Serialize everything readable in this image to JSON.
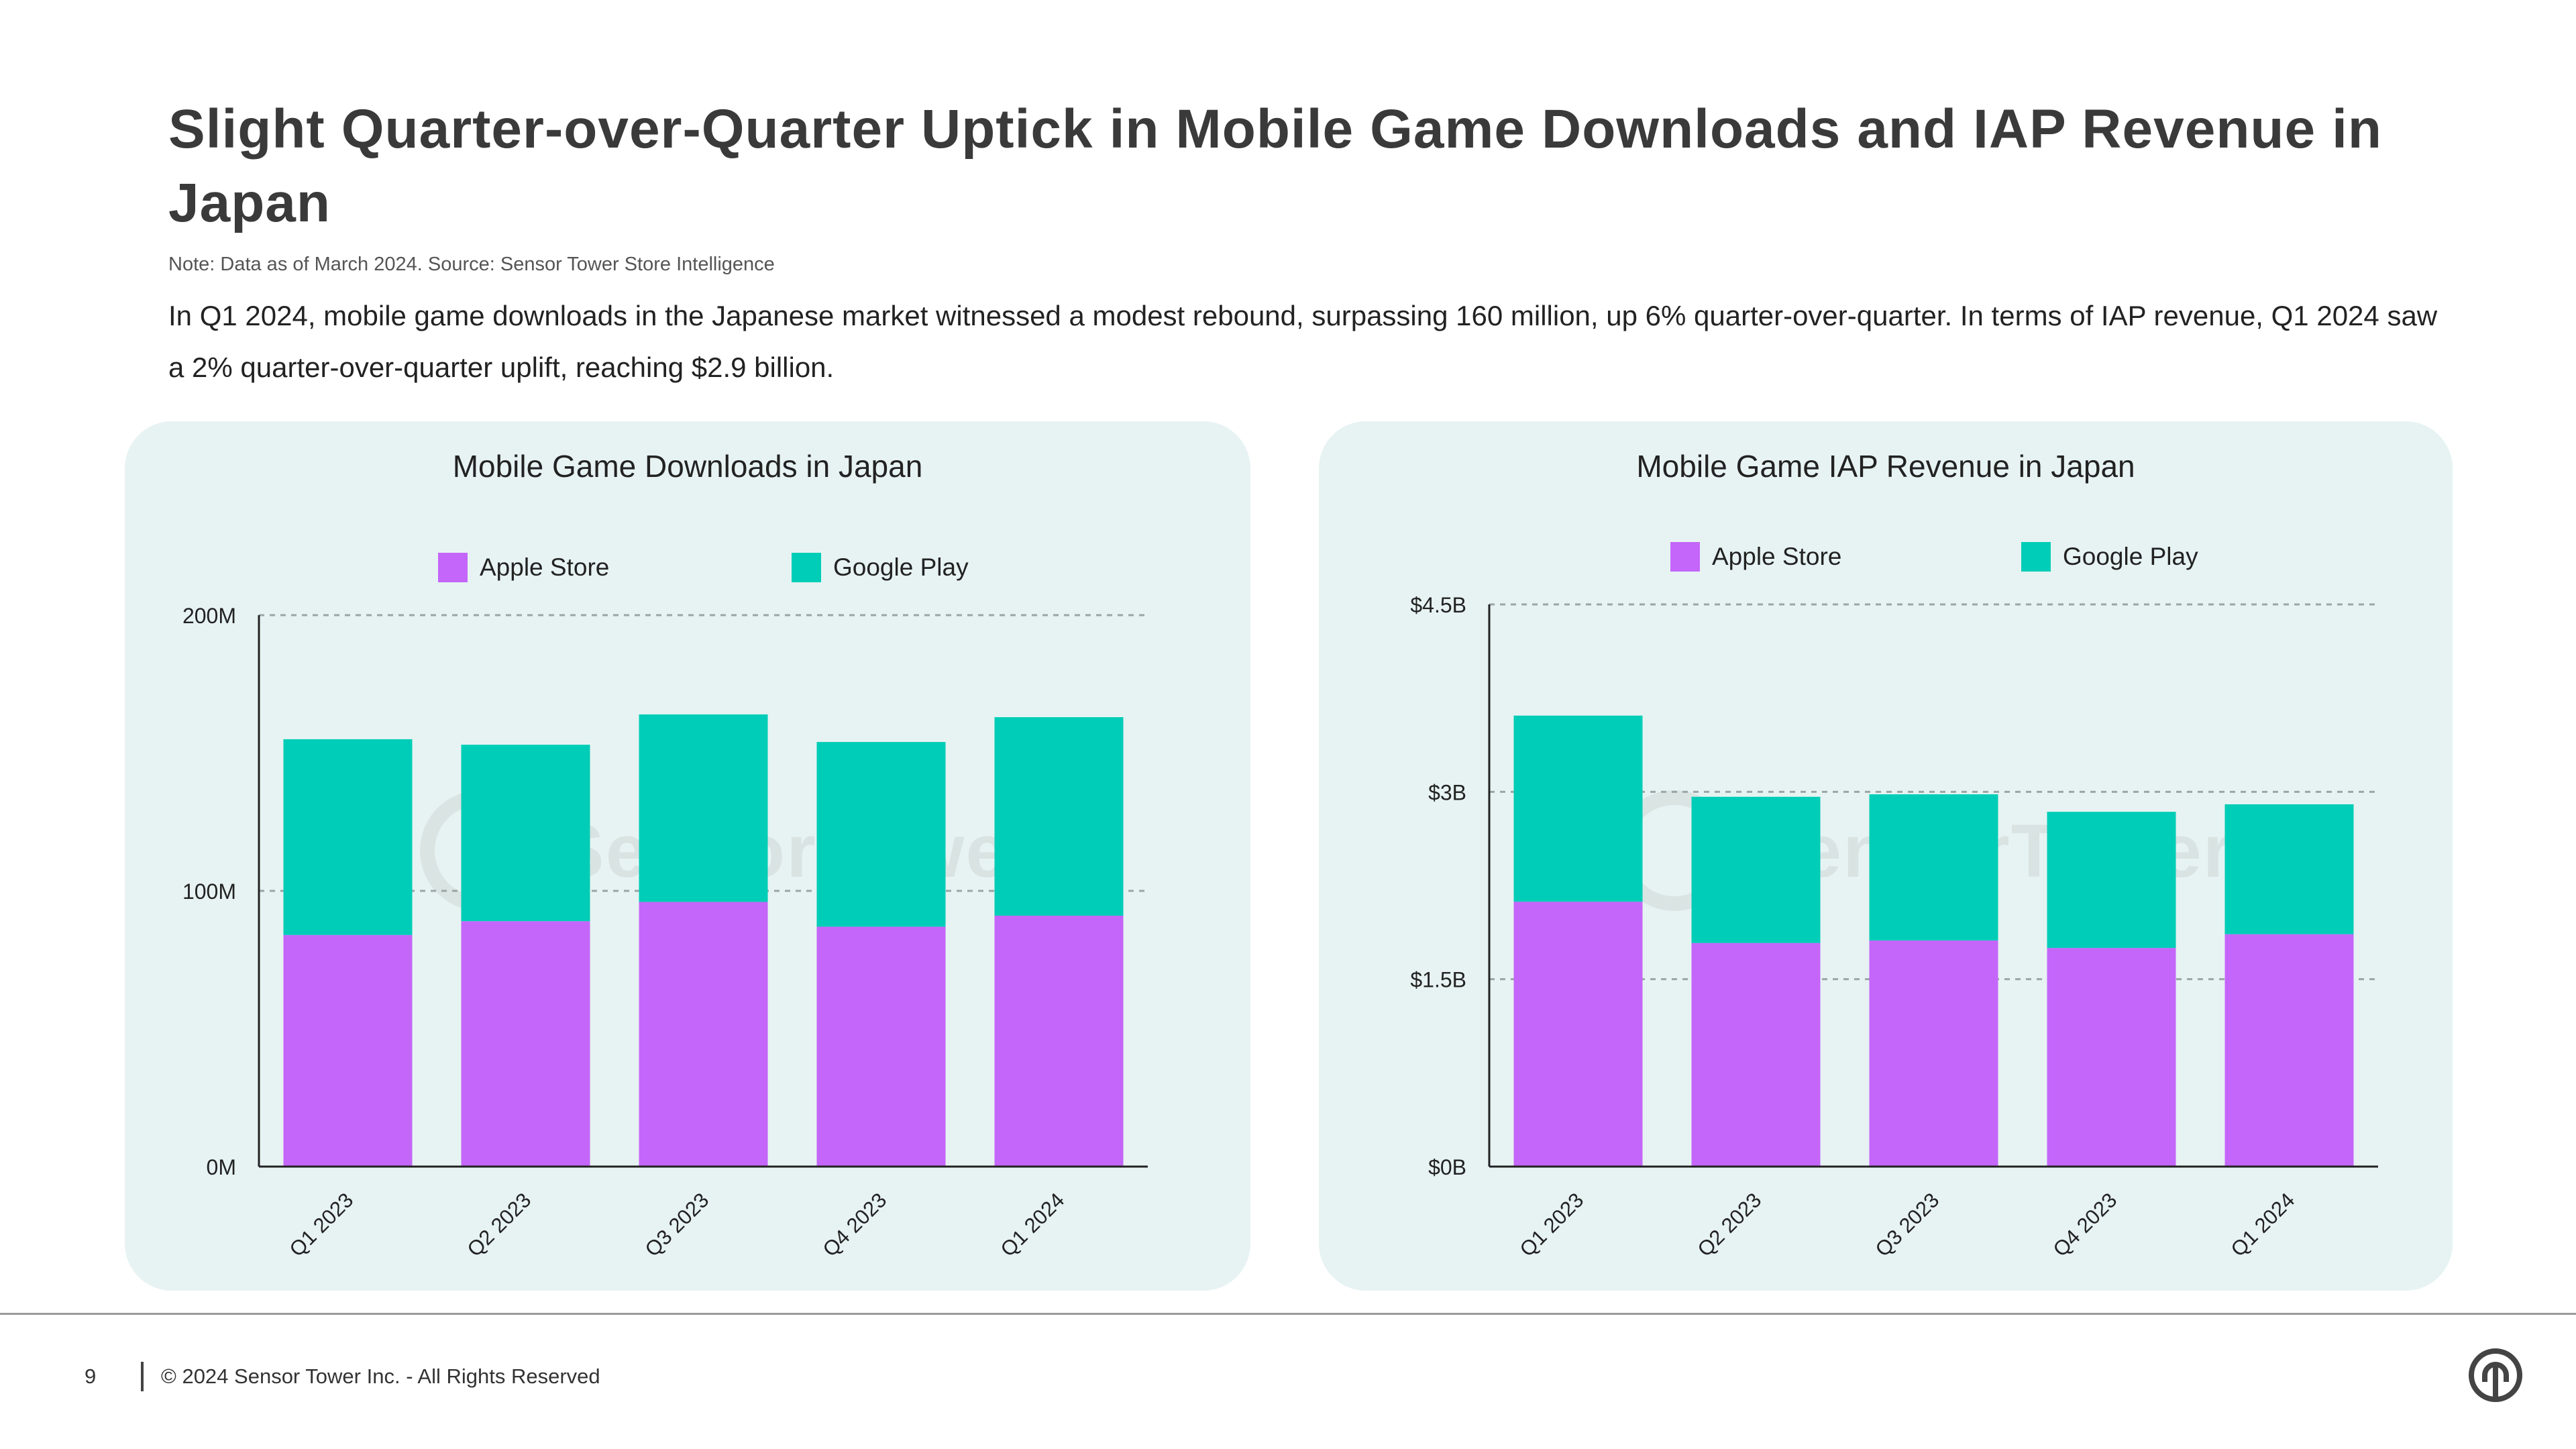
{
  "header": {
    "title": "Slight Quarter-over-Quarter Uptick in Mobile Game Downloads and IAP Revenue in Japan",
    "note": "Note: Data as of March 2024. Source: Sensor Tower Store Intelligence",
    "description": "In Q1 2024, mobile game downloads in the Japanese market witnessed a modest rebound, surpassing 160 million, up 6% quarter-over-quarter. In terms of IAP revenue, Q1 2024 saw a 2% quarter-over-quarter uplift, reaching $2.9 billion."
  },
  "watermark": {
    "text": "SensorTower"
  },
  "footer": {
    "page_number": "9",
    "copyright": "© 2024 Sensor Tower Inc. - All Rights Reserved",
    "logo_icon": "sensor-tower-logo-icon"
  },
  "colors": {
    "apple": "#c466f9",
    "google": "#00cdb7",
    "panel_bg": "#e7f3f2"
  },
  "chart_data": [
    {
      "type": "bar",
      "stacked": true,
      "title": "Mobile Game Downloads in Japan",
      "categories": [
        "Q1 2023",
        "Q2 2023",
        "Q3 2023",
        "Q4 2023",
        "Q1 2024"
      ],
      "series": [
        {
          "name": "Apple Store",
          "values": [
            84,
            89,
            96,
            87,
            91
          ]
        },
        {
          "name": "Google Play",
          "values": [
            71,
            64,
            68,
            67,
            72
          ]
        }
      ],
      "ylim": [
        0,
        200
      ],
      "yticks": [
        0,
        100,
        200
      ],
      "ytick_labels": [
        "0M",
        "100M",
        "200M"
      ],
      "legend": "top-center",
      "grid": true
    },
    {
      "type": "bar",
      "stacked": true,
      "title": "Mobile Game IAP Revenue in Japan",
      "categories": [
        "Q1 2023",
        "Q2 2023",
        "Q3 2023",
        "Q4 2023",
        "Q1 2024"
      ],
      "series": [
        {
          "name": "Apple Store",
          "values": [
            2.12,
            1.79,
            1.81,
            1.75,
            1.86
          ]
        },
        {
          "name": "Google Play",
          "values": [
            1.49,
            1.17,
            1.17,
            1.09,
            1.04
          ]
        }
      ],
      "ylim": [
        0,
        4.5
      ],
      "yticks": [
        0,
        1.5,
        3,
        4.5
      ],
      "ytick_labels": [
        "$0B",
        "$1.5B",
        "$3B",
        "$4.5B"
      ],
      "legend": "top-center",
      "grid": true
    }
  ]
}
